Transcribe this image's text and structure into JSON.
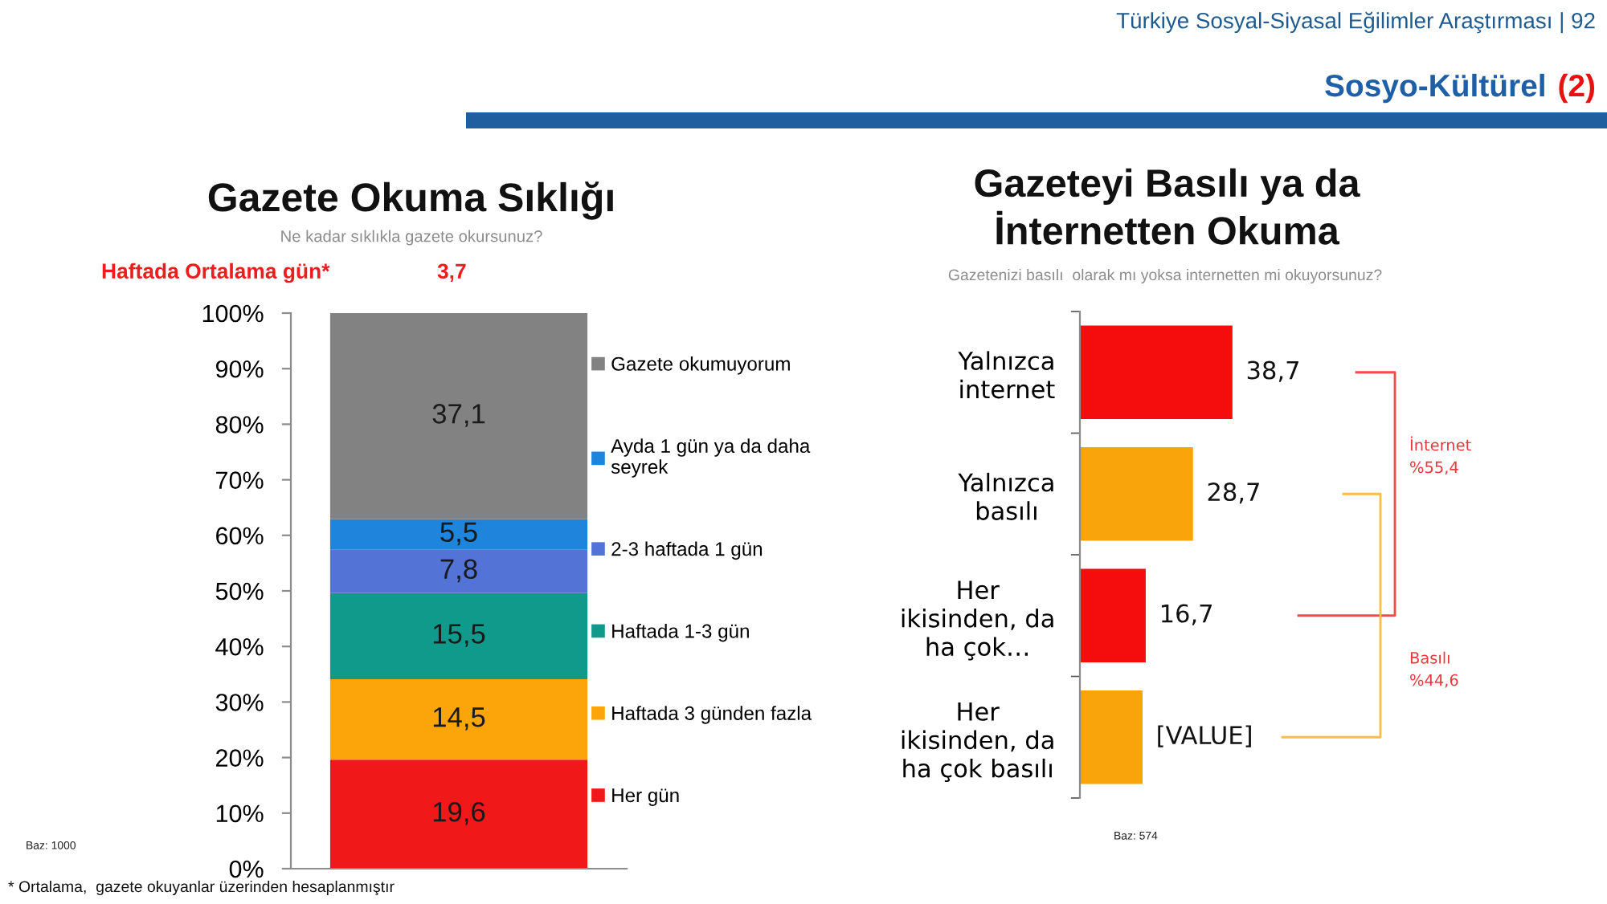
{
  "chart_data": [
    {
      "type": "bar",
      "title": "Gazete Okuma Sıklığı",
      "subtitle": "Ne kadar sıklıkla gazete okursunuz?",
      "categories": [
        null
      ],
      "stacked": true,
      "series": [
        {
          "name": "Her gün",
          "color": "#f01818",
          "values": [
            19.6
          ],
          "value_labels": [
            "19,6"
          ]
        },
        {
          "name": "Haftada 3 günden fazla",
          "color": "#fba50a",
          "values": [
            14.5
          ],
          "value_labels": [
            "14,5"
          ]
        },
        {
          "name": "Haftada 1-3 gün",
          "color": "#0f9a8c",
          "values": [
            15.5
          ],
          "value_labels": [
            "15,5"
          ]
        },
        {
          "name": "2-3 haftada 1 gün",
          "color": "#5374d6",
          "values": [
            7.8
          ],
          "value_labels": [
            "7,8"
          ]
        },
        {
          "name": "Ayda 1 gün ya da daha\nseyrek",
          "color": "#1e84dc",
          "values": [
            5.5
          ],
          "value_labels": [
            "5,5"
          ]
        },
        {
          "name": "Gazete okumuyorum",
          "color": "#828282",
          "values": [
            37.1
          ],
          "value_labels": [
            "37,1"
          ]
        }
      ],
      "ylim": [
        0,
        100
      ],
      "yticks": [
        {
          "value": 0,
          "label": "0%"
        },
        {
          "value": 10,
          "label": "10%"
        },
        {
          "value": 20,
          "label": "20%"
        },
        {
          "value": 30,
          "label": "30%"
        },
        {
          "value": 40,
          "label": "40%"
        },
        {
          "value": 50,
          "label": "50%"
        },
        {
          "value": 60,
          "label": "60%"
        },
        {
          "value": 70,
          "label": "70%"
        },
        {
          "value": 80,
          "label": "80%"
        },
        {
          "value": 90,
          "label": "90%"
        },
        {
          "value": 100,
          "label": "100%"
        }
      ],
      "legend": "right",
      "tick_labels": "y",
      "annotations": [
        "Türkiye Sosyal-Siyasal Eğilimler Araştırması | 92",
        "Sosyo-Kültürel",
        "(2)",
        "Haftada Ortalama gün*",
        "3,7",
        "Baz: 1000",
        "* Ortalama,  gazete okuyanlar üzerinden hesaplanmıştır"
      ]
    },
    {
      "type": "bar",
      "orientation": "horizontal",
      "title": "Gazeteyi Basılı ya da\nİnternetten Okuma",
      "subtitle": "Gazetenizi basılı  olarak mı yoksa internetten mi okuyorsunuz?",
      "categories": [
        "Yalnızca\ninternet",
        "Yalnızca\nbasılı",
        "Her\nikisinden, da\nha çok…",
        "Her\nikisinden, da\nha çok basılı"
      ],
      "values": [
        38.7,
        28.7,
        16.7,
        15.9
      ],
      "colors": [
        "#f50c0c",
        "#f8a40a",
        "#f50c0c",
        "#f8a40a"
      ],
      "value_labels": [
        "38,7",
        "28,7",
        "16,7",
        "[VALUE]"
      ],
      "tick_labels": "y",
      "annotations": [
        "Baz: 574",
        "İnternet\n%55,4",
        "Basılı\n%44,6"
      ]
    }
  ]
}
